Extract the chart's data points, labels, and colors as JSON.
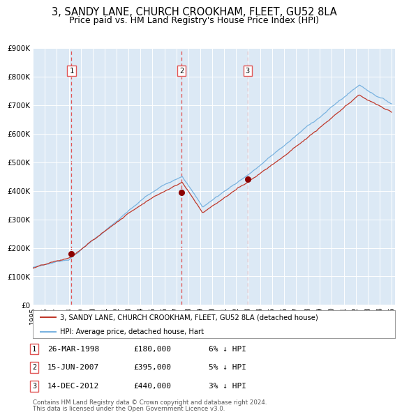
{
  "title": "3, SANDY LANE, CHURCH CROOKHAM, FLEET, GU52 8LA",
  "subtitle": "Price paid vs. HM Land Registry's House Price Index (HPI)",
  "title_fontsize": 10.5,
  "subtitle_fontsize": 9,
  "background_color": "#dce9f5",
  "plot_bg_color": "#dce9f5",
  "fig_bg_color": "#ffffff",
  "hpi_color": "#7ab3e0",
  "price_color": "#c0392b",
  "sale_marker_color": "#8b0000",
  "dashed_line_color": "#e05555",
  "ylim": [
    0,
    900000
  ],
  "start_year": 1995,
  "end_year": 2025,
  "sale_dates_numeric": [
    1998.23,
    2007.45,
    2012.96
  ],
  "sale_prices": [
    180000,
    395000,
    440000
  ],
  "sale_labels": [
    "1",
    "2",
    "3"
  ],
  "sale_info": [
    {
      "num": "1",
      "date": "26-MAR-1998",
      "price": "£180,000",
      "pct": "6% ↓ HPI"
    },
    {
      "num": "2",
      "date": "15-JUN-2007",
      "price": "£395,000",
      "pct": "5% ↓ HPI"
    },
    {
      "num": "3",
      "date": "14-DEC-2012",
      "price": "£440,000",
      "pct": "3% ↓ HPI"
    }
  ],
  "legend_line1": "3, SANDY LANE, CHURCH CROOKHAM, FLEET, GU52 8LA (detached house)",
  "legend_line2": "HPI: Average price, detached house, Hart",
  "footer_line1": "Contains HM Land Registry data © Crown copyright and database right 2024.",
  "footer_line2": "This data is licensed under the Open Government Licence v3.0."
}
